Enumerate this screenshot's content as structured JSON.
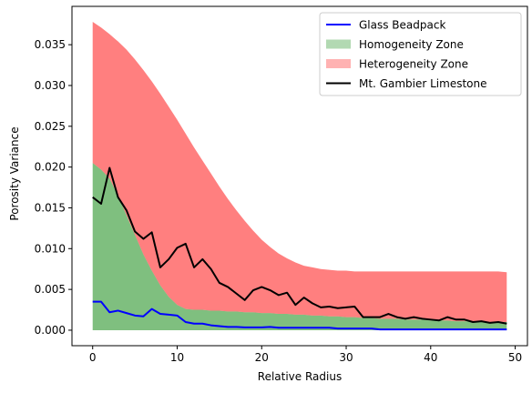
{
  "chart_data": {
    "type": "area",
    "xlabel": "Relative Radius",
    "ylabel": "Porosity Variance",
    "xlim": [
      -2.45,
      51.45
    ],
    "ylim": [
      -0.0019,
      0.0397
    ],
    "xticks": [
      0,
      10,
      20,
      30,
      40,
      50
    ],
    "yticks": [
      0.0,
      0.005,
      0.01,
      0.015,
      0.02,
      0.025,
      0.03,
      0.035
    ],
    "ytick_labels": [
      "0.000",
      "0.005",
      "0.010",
      "0.015",
      "0.020",
      "0.025",
      "0.030",
      "0.035"
    ],
    "legend_position": "top-right",
    "legend": [
      {
        "label": "Glass Beadpack",
        "kind": "line",
        "color": "#0000ff",
        "series": "glass"
      },
      {
        "label": "Homogeneity Zone",
        "kind": "patch",
        "color": "#008000",
        "alpha": 0.3,
        "series": "homo"
      },
      {
        "label": "Heterogeneity Zone",
        "kind": "patch",
        "color": "#ff0000",
        "alpha": 0.3,
        "series": "hetero"
      },
      {
        "label": "Mt. Gambier Limestone",
        "kind": "line",
        "color": "#000000",
        "series": "gambier"
      }
    ],
    "x": [
      0,
      1,
      2,
      3,
      4,
      5,
      6,
      7,
      8,
      9,
      10,
      11,
      12,
      13,
      14,
      15,
      16,
      17,
      18,
      19,
      20,
      21,
      22,
      23,
      24,
      25,
      26,
      27,
      28,
      29,
      30,
      31,
      32,
      33,
      34,
      35,
      36,
      37,
      38,
      39,
      40,
      41,
      42,
      43,
      44,
      45,
      46,
      47,
      48,
      49
    ],
    "series": [
      {
        "name": "Glass Beadpack",
        "id": "glass",
        "color": "#0000ff",
        "values": [
          0.0035,
          0.0035,
          0.0022,
          0.0024,
          0.0021,
          0.0018,
          0.0017,
          0.0026,
          0.002,
          0.0019,
          0.0018,
          0.001,
          0.0008,
          0.0008,
          0.0006,
          0.0005,
          0.0004,
          0.0004,
          0.00035,
          0.00035,
          0.00035,
          0.0004,
          0.0003,
          0.0003,
          0.0003,
          0.0003,
          0.0003,
          0.0003,
          0.0003,
          0.0002,
          0.0002,
          0.0002,
          0.0002,
          0.0002,
          0.0001,
          0.0001,
          0.0001,
          0.0001,
          0.0001,
          0.0001,
          0.0001,
          0.0001,
          0.0001,
          0.0001,
          0.0001,
          0.0001,
          0.0001,
          0.0001,
          0.0001,
          0.0001
        ]
      },
      {
        "name": "Homogeneity Zone",
        "id": "homo",
        "color": "#008000",
        "lower": [
          0,
          0,
          0,
          0,
          0,
          0,
          0,
          0,
          0,
          0,
          0,
          0,
          0,
          0,
          0,
          0,
          0,
          0,
          0,
          0,
          0,
          0,
          0,
          0,
          0,
          0,
          0,
          0,
          0,
          0,
          0,
          0,
          0,
          0,
          0,
          0,
          0,
          0,
          0,
          0,
          0,
          0,
          0,
          0,
          0,
          0,
          0,
          0,
          0,
          0
        ],
        "upper": [
          0.0205,
          0.0197,
          0.0186,
          0.0165,
          0.0141,
          0.0117,
          0.0093,
          0.0073,
          0.0055,
          0.0041,
          0.0031,
          0.0026,
          0.0025,
          0.0025,
          0.0024,
          0.0024,
          0.0023,
          0.0023,
          0.0022,
          0.0022,
          0.0021,
          0.0021,
          0.002,
          0.002,
          0.0019,
          0.0019,
          0.0018,
          0.0018,
          0.0017,
          0.0017,
          0.0016,
          0.0016,
          0.0015,
          0.0015,
          0.0014,
          0.0014,
          0.0014,
          0.0013,
          0.0013,
          0.0013,
          0.0012,
          0.0012,
          0.0012,
          0.0011,
          0.0011,
          0.0011,
          0.001,
          0.001,
          0.001,
          0.001
        ]
      },
      {
        "name": "Heterogeneity Zone",
        "id": "hetero",
        "color": "#ff0000",
        "lower": [
          0.0205,
          0.0197,
          0.0186,
          0.0165,
          0.0141,
          0.0117,
          0.0093,
          0.0073,
          0.0055,
          0.0041,
          0.0031,
          0.0026,
          0.0025,
          0.0025,
          0.0024,
          0.0024,
          0.0023,
          0.0023,
          0.0022,
          0.0022,
          0.0021,
          0.0021,
          0.002,
          0.002,
          0.0019,
          0.0019,
          0.0018,
          0.0018,
          0.0017,
          0.0017,
          0.0016,
          0.0016,
          0.0015,
          0.0015,
          0.0014,
          0.0014,
          0.0014,
          0.0013,
          0.0013,
          0.0013,
          0.0012,
          0.0012,
          0.0012,
          0.0011,
          0.0011,
          0.0011,
          0.001,
          0.001,
          0.001,
          0.001
        ],
        "upper": [
          0.0378,
          0.0371,
          0.0363,
          0.0354,
          0.0344,
          0.0332,
          0.0319,
          0.0305,
          0.029,
          0.0274,
          0.0258,
          0.0241,
          0.0224,
          0.0208,
          0.0192,
          0.0176,
          0.0161,
          0.0147,
          0.0134,
          0.0122,
          0.0111,
          0.0102,
          0.0094,
          0.0088,
          0.0083,
          0.0079,
          0.0077,
          0.0075,
          0.0074,
          0.0073,
          0.0073,
          0.0072,
          0.0072,
          0.0072,
          0.0072,
          0.0072,
          0.0072,
          0.0072,
          0.0072,
          0.0072,
          0.0072,
          0.0072,
          0.0072,
          0.0072,
          0.0072,
          0.0072,
          0.0072,
          0.0072,
          0.0072,
          0.0071
        ]
      },
      {
        "name": "Mt. Gambier Limestone",
        "id": "gambier",
        "color": "#000000",
        "values": [
          0.0163,
          0.0155,
          0.0199,
          0.0163,
          0.0147,
          0.0121,
          0.0112,
          0.012,
          0.0077,
          0.0087,
          0.0101,
          0.0106,
          0.0077,
          0.0087,
          0.0075,
          0.0058,
          0.0053,
          0.0045,
          0.0037,
          0.0049,
          0.0053,
          0.0049,
          0.0043,
          0.0046,
          0.0031,
          0.004,
          0.0033,
          0.0028,
          0.0029,
          0.0027,
          0.0028,
          0.0029,
          0.0016,
          0.0016,
          0.0016,
          0.002,
          0.0016,
          0.0014,
          0.0016,
          0.0014,
          0.0013,
          0.0012,
          0.0016,
          0.0013,
          0.0013,
          0.001,
          0.0011,
          0.0009,
          0.001,
          0.0008
        ]
      }
    ]
  }
}
